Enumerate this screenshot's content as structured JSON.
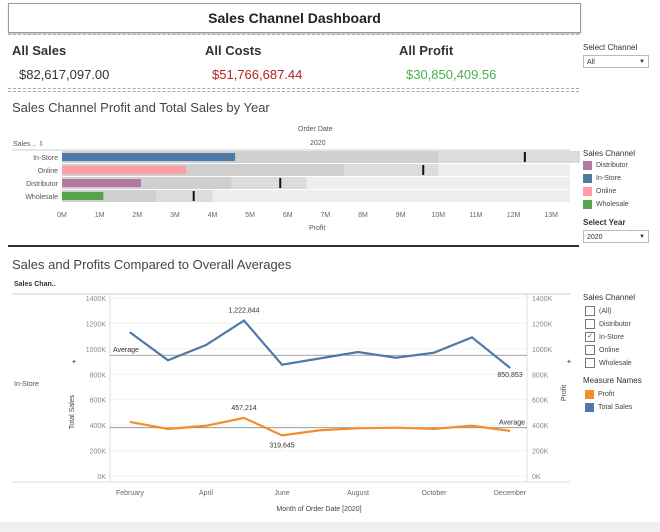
{
  "dashboard": {
    "title": "Sales Channel Dashboard"
  },
  "kpis": [
    {
      "label": "All Sales",
      "value": "$82,617,097.00",
      "color": "#333333"
    },
    {
      "label": "All Costs",
      "value": "$51,766,687.44",
      "color": "#b22222"
    },
    {
      "label": "All Profit",
      "value": "$30,850,409.56",
      "color": "#4caf50"
    }
  ],
  "controls": {
    "channel": {
      "label": "Select Channel",
      "value": "All"
    },
    "year": {
      "label": "Select Year",
      "value": "2020"
    }
  },
  "chart_data": [
    {
      "type": "bar",
      "title": "Sales Channel Profit and Total Sales by Year",
      "column_header": "Order Date",
      "year": "2020",
      "row_header": "Sales .. ",
      "categories": [
        "In-Store",
        "Online",
        "Distributor",
        "Wholesale"
      ],
      "series": [
        {
          "name": "Profit",
          "values": [
            4.6,
            3.3,
            2.1,
            1.1
          ]
        },
        {
          "name": "Total Sales",
          "values": [
            12.3,
            9.6,
            5.8,
            3.5
          ]
        }
      ],
      "band_values": [
        [
          10,
          14
        ],
        [
          7.5,
          10
        ],
        [
          4.5,
          6.5
        ],
        [
          2.5,
          4
        ]
      ],
      "xlabel": "Profit",
      "x_ticks": [
        "0M",
        "1M",
        "2M",
        "3M",
        "4M",
        "5M",
        "6M",
        "7M",
        "8M",
        "9M",
        "10M",
        "11M",
        "12M",
        "13M"
      ],
      "xlim": [
        0,
        13.5
      ],
      "colors": [
        "#4e79a7",
        "#ff9da7",
        "#b07aa1",
        "#59a14f"
      ],
      "legend": {
        "title": "Sales Channel",
        "items": [
          {
            "label": "Distributor",
            "color": "#b07aa1"
          },
          {
            "label": "In-Store",
            "color": "#4e79a7"
          },
          {
            "label": "Online",
            "color": "#ff9da7"
          },
          {
            "label": "Wholesale",
            "color": "#59a14f"
          }
        ]
      }
    },
    {
      "type": "line",
      "title": "Sales and Profits Compared to Overall Averages",
      "row_header": "Sales Chan..",
      "row_label": "In-Store",
      "xlabel": "Month of Order Date [2020]",
      "x_ticks": [
        "February",
        "April",
        "June",
        "August",
        "October",
        "December"
      ],
      "ylabel_left": "Total Sales",
      "ylabel_right": "Profit",
      "y_ticks": [
        "0K",
        "200K",
        "400K",
        "600K",
        "800K",
        "1000K",
        "1200K",
        "1400K"
      ],
      "ylim": [
        0,
        1400
      ],
      "months": [
        2,
        3,
        4,
        5,
        6,
        7,
        8,
        9,
        10,
        11,
        12
      ],
      "series": [
        {
          "name": "Total Sales",
          "color": "#4e79a7",
          "values": [
            1130,
            910,
            1030,
            1222.844,
            875,
            925,
            975,
            930,
            970,
            1090,
            850.853
          ],
          "average": 950
        },
        {
          "name": "Profit",
          "color": "#f28e2b",
          "values": [
            425,
            370,
            395,
            457.214,
            319.645,
            360,
            375,
            380,
            370,
            395,
            355
          ],
          "average": 380
        }
      ],
      "annotations": [
        {
          "label": "1,222,844"
        },
        {
          "label": "850,853"
        },
        {
          "label": "457,214"
        },
        {
          "label": "319,645"
        },
        {
          "label": "Average"
        },
        {
          "label": "Average"
        }
      ],
      "filter_legend": {
        "title": "Sales Channel",
        "items": [
          {
            "label": "(All)",
            "checked": false
          },
          {
            "label": "Distributor",
            "checked": false
          },
          {
            "label": "In-Store",
            "checked": true
          },
          {
            "label": "Online",
            "checked": false
          },
          {
            "label": "Wholesale",
            "checked": false
          }
        ]
      },
      "measure_legend": {
        "title": "Measure Names",
        "items": [
          {
            "label": "Profit",
            "color": "#f28e2b"
          },
          {
            "label": "Total Sales",
            "color": "#4e79a7"
          }
        ]
      }
    }
  ]
}
